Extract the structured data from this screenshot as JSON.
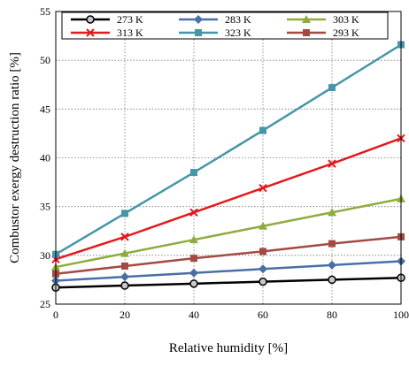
{
  "chart_data": {
    "type": "line",
    "xlabel": "Relative humidity [%]",
    "ylabel": "Combustor exergy destruction ratio [%]",
    "xlim": [
      0,
      100
    ],
    "ylim": [
      25,
      55
    ],
    "x_ticks": [
      "0",
      "20",
      "40",
      "60",
      "80",
      "100"
    ],
    "y_ticks": [
      "25",
      "30",
      "35",
      "40",
      "45",
      "50",
      "55"
    ],
    "grid": true,
    "legend_position": "top",
    "x": [
      0,
      20,
      40,
      60,
      80,
      100
    ],
    "series": [
      {
        "name": "273 K",
        "color": "#000000",
        "marker": "circle",
        "values": [
          26.7,
          26.9,
          27.1,
          27.3,
          27.5,
          27.7
        ]
      },
      {
        "name": "283 K",
        "color": "#4a6fa5",
        "marker": "diamond",
        "values": [
          27.4,
          27.8,
          28.2,
          28.6,
          29.0,
          29.4
        ]
      },
      {
        "name": "303 K",
        "color": "#8fac3f",
        "marker": "triangle",
        "values": [
          28.8,
          30.2,
          31.6,
          33.0,
          34.4,
          35.8
        ]
      },
      {
        "name": "313 K",
        "color": "#e31a1c",
        "marker": "x",
        "values": [
          29.6,
          31.9,
          34.4,
          36.9,
          39.4,
          42.0
        ]
      },
      {
        "name": "323 K",
        "color": "#4596a8",
        "marker": "square",
        "values": [
          30.1,
          34.3,
          38.5,
          42.8,
          47.2,
          51.6
        ]
      },
      {
        "name": "293 K",
        "color": "#a34a44",
        "marker": "square",
        "values": [
          28.1,
          28.9,
          29.7,
          30.4,
          31.2,
          31.9
        ]
      }
    ]
  }
}
